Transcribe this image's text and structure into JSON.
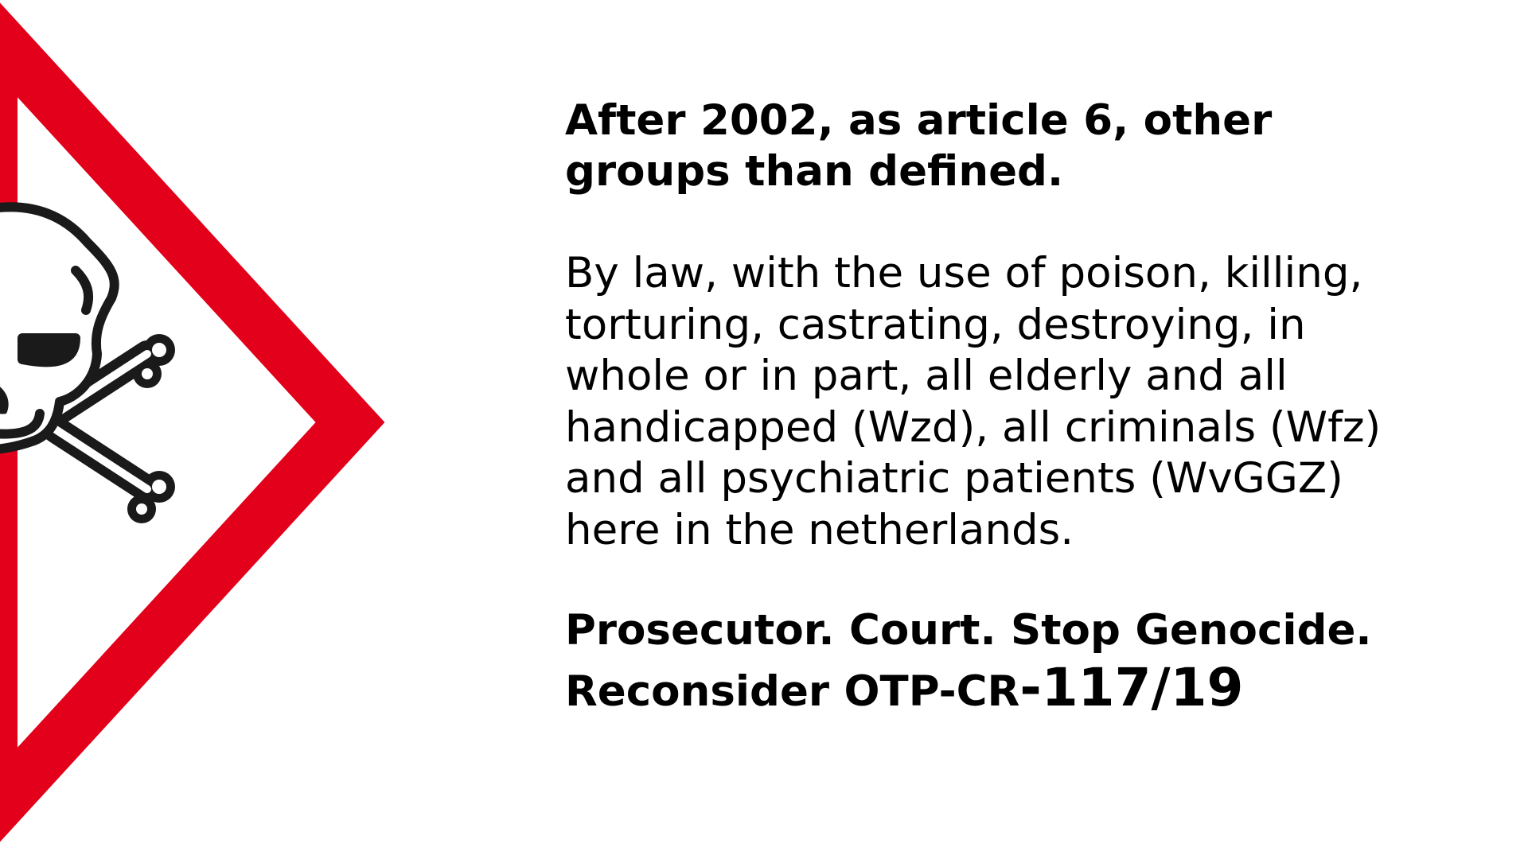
{
  "hazard_symbol": {
    "icon": "skull-and-crossbones-icon",
    "border_color": "#e2001a",
    "symbol_color": "#1a1a1a"
  },
  "heading": "After 2002, as article 6, other\ngroups than defined.",
  "body": "By law, with the use of poison, killing,\ntorturing, castrating, destroying, in\nwhole or in part, all elderly and all\nhandicapped (Wzd), all criminals (Wfz)\nand all psychiatric patients (WvGGZ)\nhere in the netherlands.",
  "closing": {
    "line1": "Prosecutor. Court. Stop Genocide.",
    "line2_prefix": "Reconsider OTP-CR",
    "line2_number": "-117/19"
  }
}
